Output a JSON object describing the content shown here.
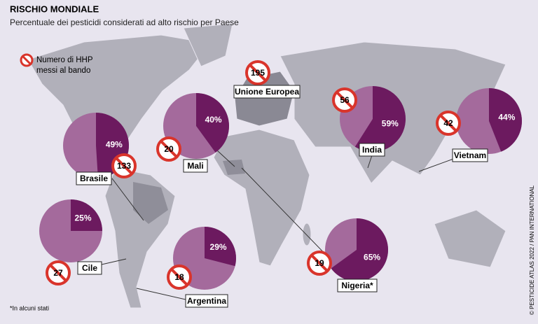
{
  "header": {
    "title": "RISCHIO MONDIALE",
    "subtitle": "Percentuale dei pesticidi considerati ad alto rischio per Paese"
  },
  "legend": {
    "line1": "Numero di HHP",
    "line2": "messi al bando"
  },
  "europe": {
    "label": "Unione Europea",
    "banned": 195
  },
  "countries": [
    {
      "label": "Brasile",
      "share": 49,
      "share_label": "49%",
      "banned": 133
    },
    {
      "label": "Mali",
      "share": 40,
      "share_label": "40%",
      "banned": 20
    },
    {
      "label": "India",
      "share": 59,
      "share_label": "59%",
      "banned": 56
    },
    {
      "label": "Vietnam",
      "share": 44,
      "share_label": "44%",
      "banned": 42
    },
    {
      "label": "Cile",
      "share": 25,
      "share_label": "25%",
      "banned": 27
    },
    {
      "label": "Argentina",
      "share": 29,
      "share_label": "29%",
      "banned": 18
    },
    {
      "label": "Nigeria*",
      "share": 65,
      "share_label": "65%",
      "banned": 19
    }
  ],
  "footnote": "*In alcuni stati",
  "credit": "© PESTICIDE ATLAS 2022 / PAN INTERNATIONAL"
}
